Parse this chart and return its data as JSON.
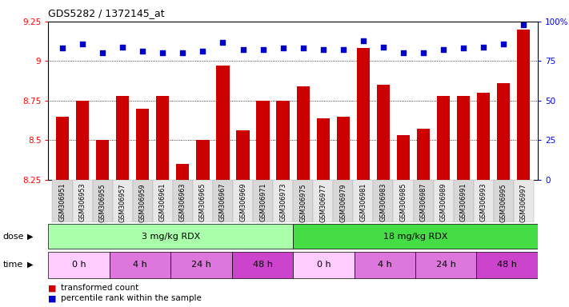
{
  "title": "GDS5282 / 1372145_at",
  "samples": [
    "GSM306951",
    "GSM306953",
    "GSM306955",
    "GSM306957",
    "GSM306959",
    "GSM306961",
    "GSM306963",
    "GSM306965",
    "GSM306967",
    "GSM306969",
    "GSM306971",
    "GSM306973",
    "GSM306975",
    "GSM306977",
    "GSM306979",
    "GSM306981",
    "GSM306983",
    "GSM306985",
    "GSM306987",
    "GSM306989",
    "GSM306991",
    "GSM306993",
    "GSM306995",
    "GSM306997"
  ],
  "bar_values": [
    8.65,
    8.75,
    8.5,
    8.78,
    8.7,
    8.78,
    8.35,
    8.5,
    8.97,
    8.56,
    8.75,
    8.75,
    8.84,
    8.64,
    8.65,
    9.08,
    8.85,
    8.53,
    8.57,
    8.78,
    8.78,
    8.8,
    8.86,
    9.2
  ],
  "percentile_values": [
    83,
    86,
    80,
    84,
    81,
    80,
    80,
    81,
    87,
    82,
    82,
    83,
    83,
    82,
    82,
    88,
    84,
    80,
    80,
    82,
    83,
    84,
    86,
    98
  ],
  "bar_color": "#cc0000",
  "percentile_color": "#0000cc",
  "ylim_left": [
    8.25,
    9.25
  ],
  "ylim_right": [
    0,
    100
  ],
  "yticks_left": [
    8.25,
    8.5,
    8.75,
    9.0,
    9.25
  ],
  "ytick_labels_left": [
    "8.25",
    "8.5",
    "8.75",
    "9",
    "9.25"
  ],
  "yticks_right": [
    0,
    25,
    50,
    75,
    100
  ],
  "ytick_labels_right": [
    "0",
    "25",
    "50",
    "75",
    "100%"
  ],
  "gridlines": [
    9.0,
    8.75,
    8.5
  ],
  "dose_groups": [
    {
      "label": "3 mg/kg RDX",
      "start": 0,
      "end": 12,
      "color": "#aaffaa"
    },
    {
      "label": "18 mg/kg RDX",
      "start": 12,
      "end": 24,
      "color": "#44dd44"
    }
  ],
  "time_defs": [
    {
      "label": "0 h",
      "start": 0,
      "end": 3,
      "color": "#ffccff"
    },
    {
      "label": "4 h",
      "start": 3,
      "end": 6,
      "color": "#dd77dd"
    },
    {
      "label": "24 h",
      "start": 6,
      "end": 9,
      "color": "#dd77dd"
    },
    {
      "label": "48 h",
      "start": 9,
      "end": 12,
      "color": "#cc44cc"
    },
    {
      "label": "0 h",
      "start": 12,
      "end": 15,
      "color": "#ffccff"
    },
    {
      "label": "4 h",
      "start": 15,
      "end": 18,
      "color": "#dd77dd"
    },
    {
      "label": "24 h",
      "start": 18,
      "end": 21,
      "color": "#dd77dd"
    },
    {
      "label": "48 h",
      "start": 21,
      "end": 24,
      "color": "#cc44cc"
    }
  ],
  "legend_bar_label": "transformed count",
  "legend_pct_label": "percentile rank within the sample",
  "dose_label": "dose",
  "time_label": "time"
}
